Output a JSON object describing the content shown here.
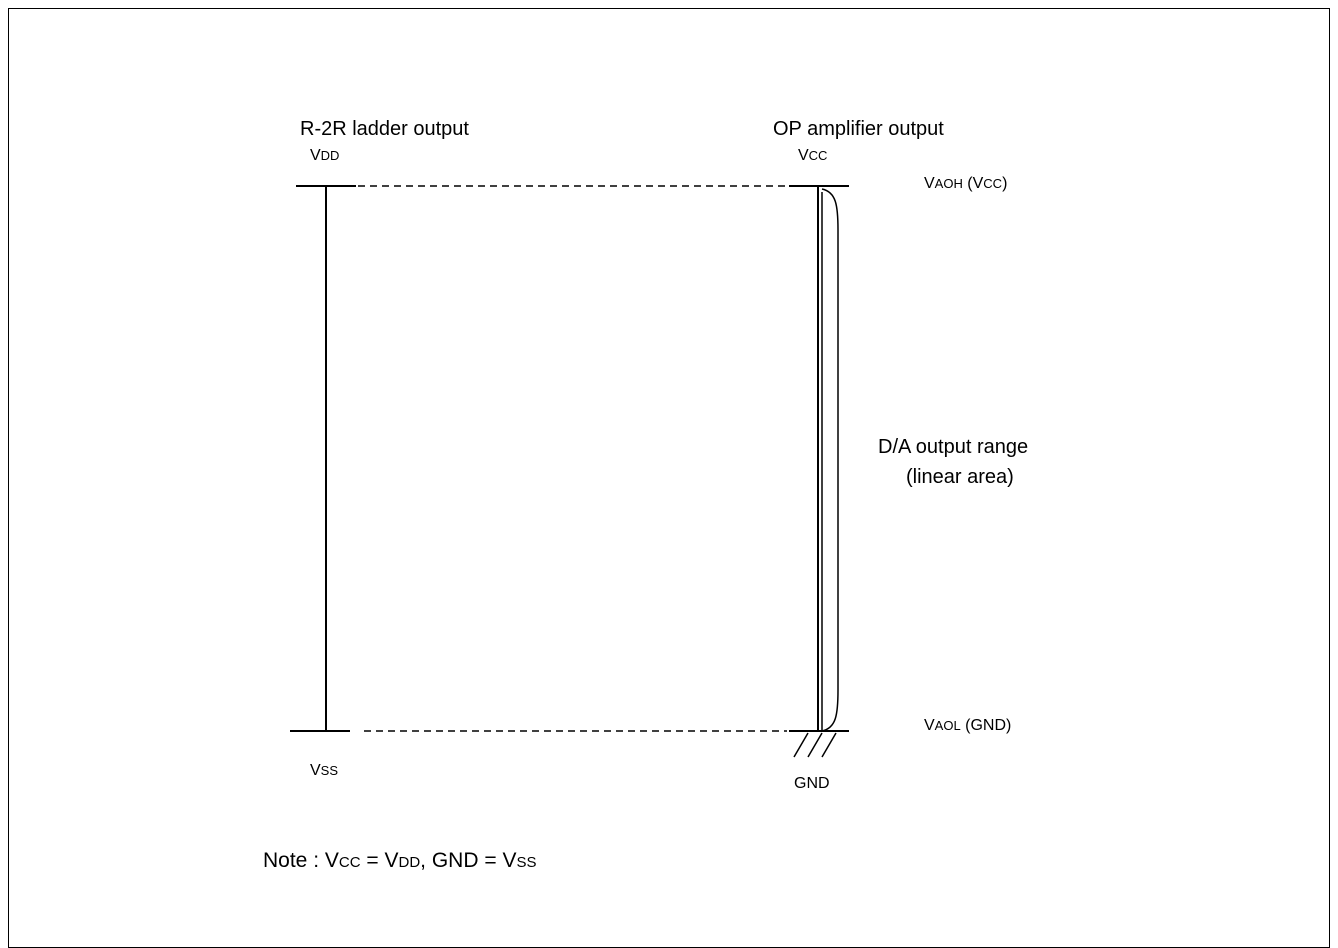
{
  "diagram": {
    "left_rail": {
      "title": "R-2R ladder output",
      "top_label": {
        "main": "V",
        "sub": "DD"
      },
      "bottom_label": {
        "main": "V",
        "sub": "SS"
      }
    },
    "right_rail": {
      "title": "OP amplifier output",
      "top_label": {
        "main": "V",
        "sub": "CC"
      },
      "ground_label": "GND"
    },
    "level_high": {
      "main": "V",
      "sub": "AOH",
      "suffix_open": " (V",
      "suffix_sub": "CC",
      "suffix_close": ")"
    },
    "level_low": {
      "main": "V",
      "sub": "AOL",
      "suffix": " (GND)"
    },
    "range_label": {
      "line1": "D/A output range",
      "line2": "(linear area)"
    },
    "note": {
      "prefix": "Note : V",
      "sub1": "CC",
      "eq1": " = V",
      "sub2": "DD",
      "mid": ", GND = V",
      "sub3": "SS"
    }
  }
}
